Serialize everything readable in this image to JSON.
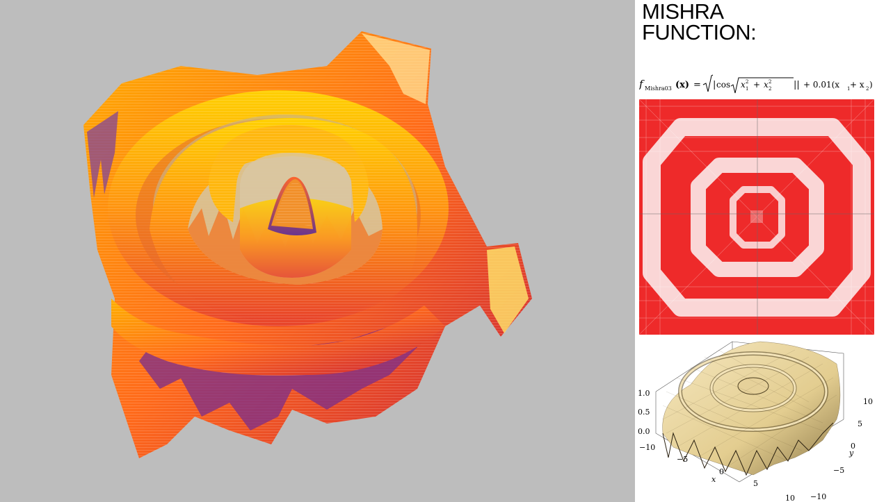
{
  "page": {
    "title_lines": [
      "MISHRA",
      "FUNCTION:"
    ]
  },
  "formula": {
    "f": "f",
    "subscript": "Mishra03",
    "lhs_arg": "(x)",
    "eq": "=",
    "abs_open": "|",
    "cos": "cos",
    "x1": "x",
    "x1_sub": "1",
    "x1_sup": "2",
    "plus": "+",
    "x2": "x",
    "x2_sub": "2",
    "x2_sup": "2",
    "abs_close": "||",
    "tail": "+ 0.01(x",
    "tail_sub1": "1",
    "tail_mid": " + x",
    "tail_sub2": "2",
    "tail_end": ")"
  },
  "surface_plot": {
    "z_ticks": [
      "1.0",
      "0.5",
      "0.0"
    ],
    "x_ticks": [
      "−10",
      "−5",
      "0",
      "5",
      "10"
    ],
    "y_ticks": [
      "10",
      "5",
      "0",
      "−5",
      "−10"
    ],
    "x_label": "x",
    "y_label": "y"
  },
  "colors": {
    "viewport_bg": "#bdbdbd",
    "contour_red": "#ee2a2a",
    "contour_white": "#fbe9e9",
    "surface_cream": "#e8d6a4"
  }
}
